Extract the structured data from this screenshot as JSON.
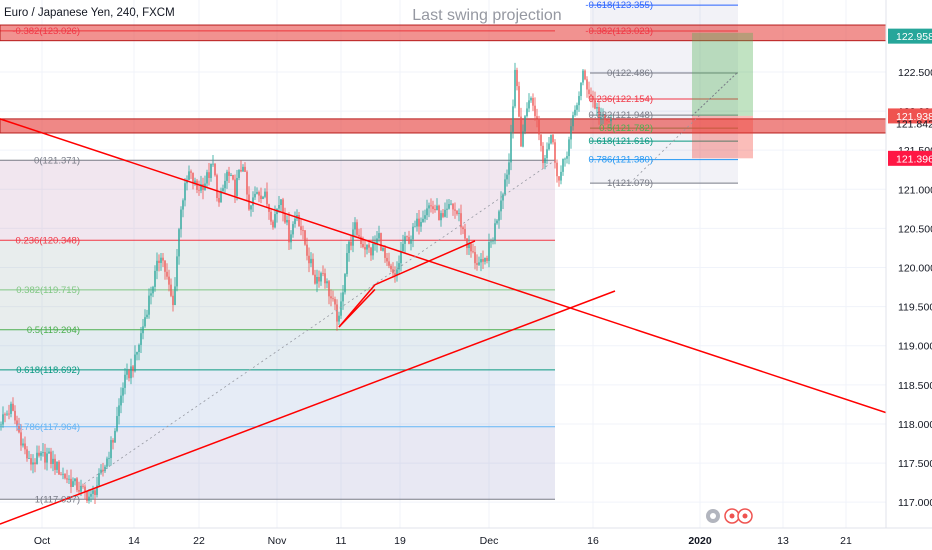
{
  "header": {
    "symbol_line": "Euro / Japanese Yen, 240, FXCM",
    "watermark_title": "Last swing projection"
  },
  "colors": {
    "up": "#26a69a",
    "down": "#ef5350",
    "trend": "#ff0000",
    "zone_fill": "#e53935",
    "fib_box": "#c5cae9",
    "target_fill": "#4caf50",
    "stop_fill": "#f44336",
    "axis_text": "#131722",
    "price_tag_green": "#26a69a",
    "price_tag_red": "#ff1744"
  },
  "icons": [
    "settings-icon",
    "camera-icon",
    "gear-icon"
  ],
  "chart_data": {
    "type": "candlestick",
    "title": "Last swing projection",
    "symbol": "Euro / Japanese Yen, 240, FXCM",
    "ylim": [
      116.67,
      123.42
    ],
    "y_ticks": [
      "117.000",
      "117.500",
      "118.000",
      "118.500",
      "119.000",
      "119.500",
      "120.000",
      "120.500",
      "121.000",
      "121.500",
      "122.000",
      "122.500"
    ],
    "x_ticks": [
      "Oct",
      "14",
      "22",
      "Nov",
      "11",
      "19",
      "Dec",
      "16",
      "2020",
      "13",
      "21"
    ],
    "price_tags": [
      {
        "label": "122.958",
        "color": "#26a69a"
      },
      {
        "label": "121.938",
        "color": "#ef5350"
      },
      {
        "label": "121.842",
        "color": "#131722",
        "text_only": true
      },
      {
        "label": "121.396",
        "color": "#ff1744"
      }
    ],
    "series": [
      {
        "name": "EUR/JPY 4H",
        "anchors": [
          [
            0,
            118.05
          ],
          [
            5,
            118.2
          ],
          [
            14,
            117.5
          ],
          [
            23,
            117.6
          ],
          [
            31,
            117.35
          ],
          [
            38,
            117.2
          ],
          [
            45,
            117.05
          ],
          [
            51,
            117.4
          ],
          [
            56,
            117.8
          ],
          [
            61,
            118.5
          ],
          [
            67,
            118.8
          ],
          [
            74,
            119.6
          ],
          [
            80,
            120.2
          ],
          [
            86,
            119.5
          ],
          [
            90,
            120.8
          ],
          [
            94,
            121.2
          ],
          [
            98,
            121.0
          ],
          [
            102,
            121.1
          ],
          [
            106,
            121.3
          ],
          [
            109,
            120.8
          ],
          [
            113,
            121.2
          ],
          [
            117,
            121.0
          ],
          [
            121,
            121.35
          ],
          [
            124,
            120.7
          ],
          [
            128,
            121.0
          ],
          [
            132,
            120.9
          ],
          [
            136,
            120.6
          ],
          [
            140,
            120.9
          ],
          [
            144,
            120.4
          ],
          [
            148,
            120.7
          ],
          [
            153,
            120.2
          ],
          [
            157,
            119.85
          ],
          [
            161,
            119.95
          ],
          [
            165,
            119.6
          ],
          [
            169,
            119.3
          ],
          [
            173,
            120.2
          ],
          [
            177,
            120.5
          ],
          [
            181,
            120.3
          ],
          [
            185,
            120.2
          ],
          [
            189,
            120.4
          ],
          [
            193,
            120.0
          ],
          [
            197,
            119.85
          ],
          [
            201,
            120.3
          ],
          [
            205,
            120.4
          ],
          [
            209,
            120.6
          ],
          [
            213,
            120.8
          ],
          [
            217,
            120.75
          ],
          [
            221,
            120.6
          ],
          [
            225,
            120.8
          ],
          [
            229,
            120.65
          ],
          [
            233,
            120.3
          ],
          [
            237,
            120.1
          ],
          [
            241,
            120.0
          ],
          [
            246,
            120.4
          ],
          [
            250,
            120.9
          ],
          [
            254,
            121.35
          ],
          [
            257,
            122.55
          ],
          [
            260,
            121.6
          ],
          [
            264,
            122.2
          ],
          [
            268,
            121.9
          ],
          [
            271,
            121.4
          ],
          [
            275,
            121.7
          ],
          [
            279,
            121.1
          ],
          [
            283,
            121.5
          ],
          [
            287,
            122.0
          ],
          [
            291,
            122.45
          ],
          [
            295,
            122.2
          ],
          [
            299,
            121.95
          ],
          [
            302,
            121.85
          ],
          [
            305,
            121.9
          ]
        ]
      }
    ],
    "fibonacci_left": [
      {
        "level": "0",
        "price": 121.371,
        "label": "0(121.371)"
      },
      {
        "level": "0.236",
        "price": 120.348,
        "label": "0.236(120.348)"
      },
      {
        "level": "0.382",
        "price": 119.715,
        "label": "0.382(119.715)"
      },
      {
        "level": "0.5",
        "price": 119.204,
        "label": "0.5(119.204)"
      },
      {
        "level": "0.618",
        "price": 118.692,
        "label": "0.618(118.692)"
      },
      {
        "level": "0.786",
        "price": 117.964,
        "label": "0.786(117.964)"
      },
      {
        "level": "1",
        "price": 117.037,
        "label": "1(117.037)"
      },
      {
        "level": "-0.382",
        "price": 123.026,
        "label": "-0.382(123.026)"
      }
    ],
    "fibonacci_right": [
      {
        "level": "-0.618",
        "price": 123.355,
        "label": "-0.618(123.355)"
      },
      {
        "level": "-0.382",
        "price": 123.023,
        "label": "-0.382(123.023)"
      },
      {
        "level": "0",
        "price": 122.486,
        "label": "0(122.486)"
      },
      {
        "level": "0.236",
        "price": 122.154,
        "label": "0.236(122.154)"
      },
      {
        "level": "0.382",
        "price": 121.948,
        "label": "0.382(121.948)"
      },
      {
        "level": "0.5",
        "price": 121.782,
        "label": "0.5(121.782)"
      },
      {
        "level": "0.618",
        "price": 121.616,
        "label": "0.618(121.616)"
      },
      {
        "level": "0.786",
        "price": 121.38,
        "label": "0.786(121.380)"
      },
      {
        "level": "1",
        "price": 121.079,
        "label": "1(121.079)"
      }
    ]
  }
}
